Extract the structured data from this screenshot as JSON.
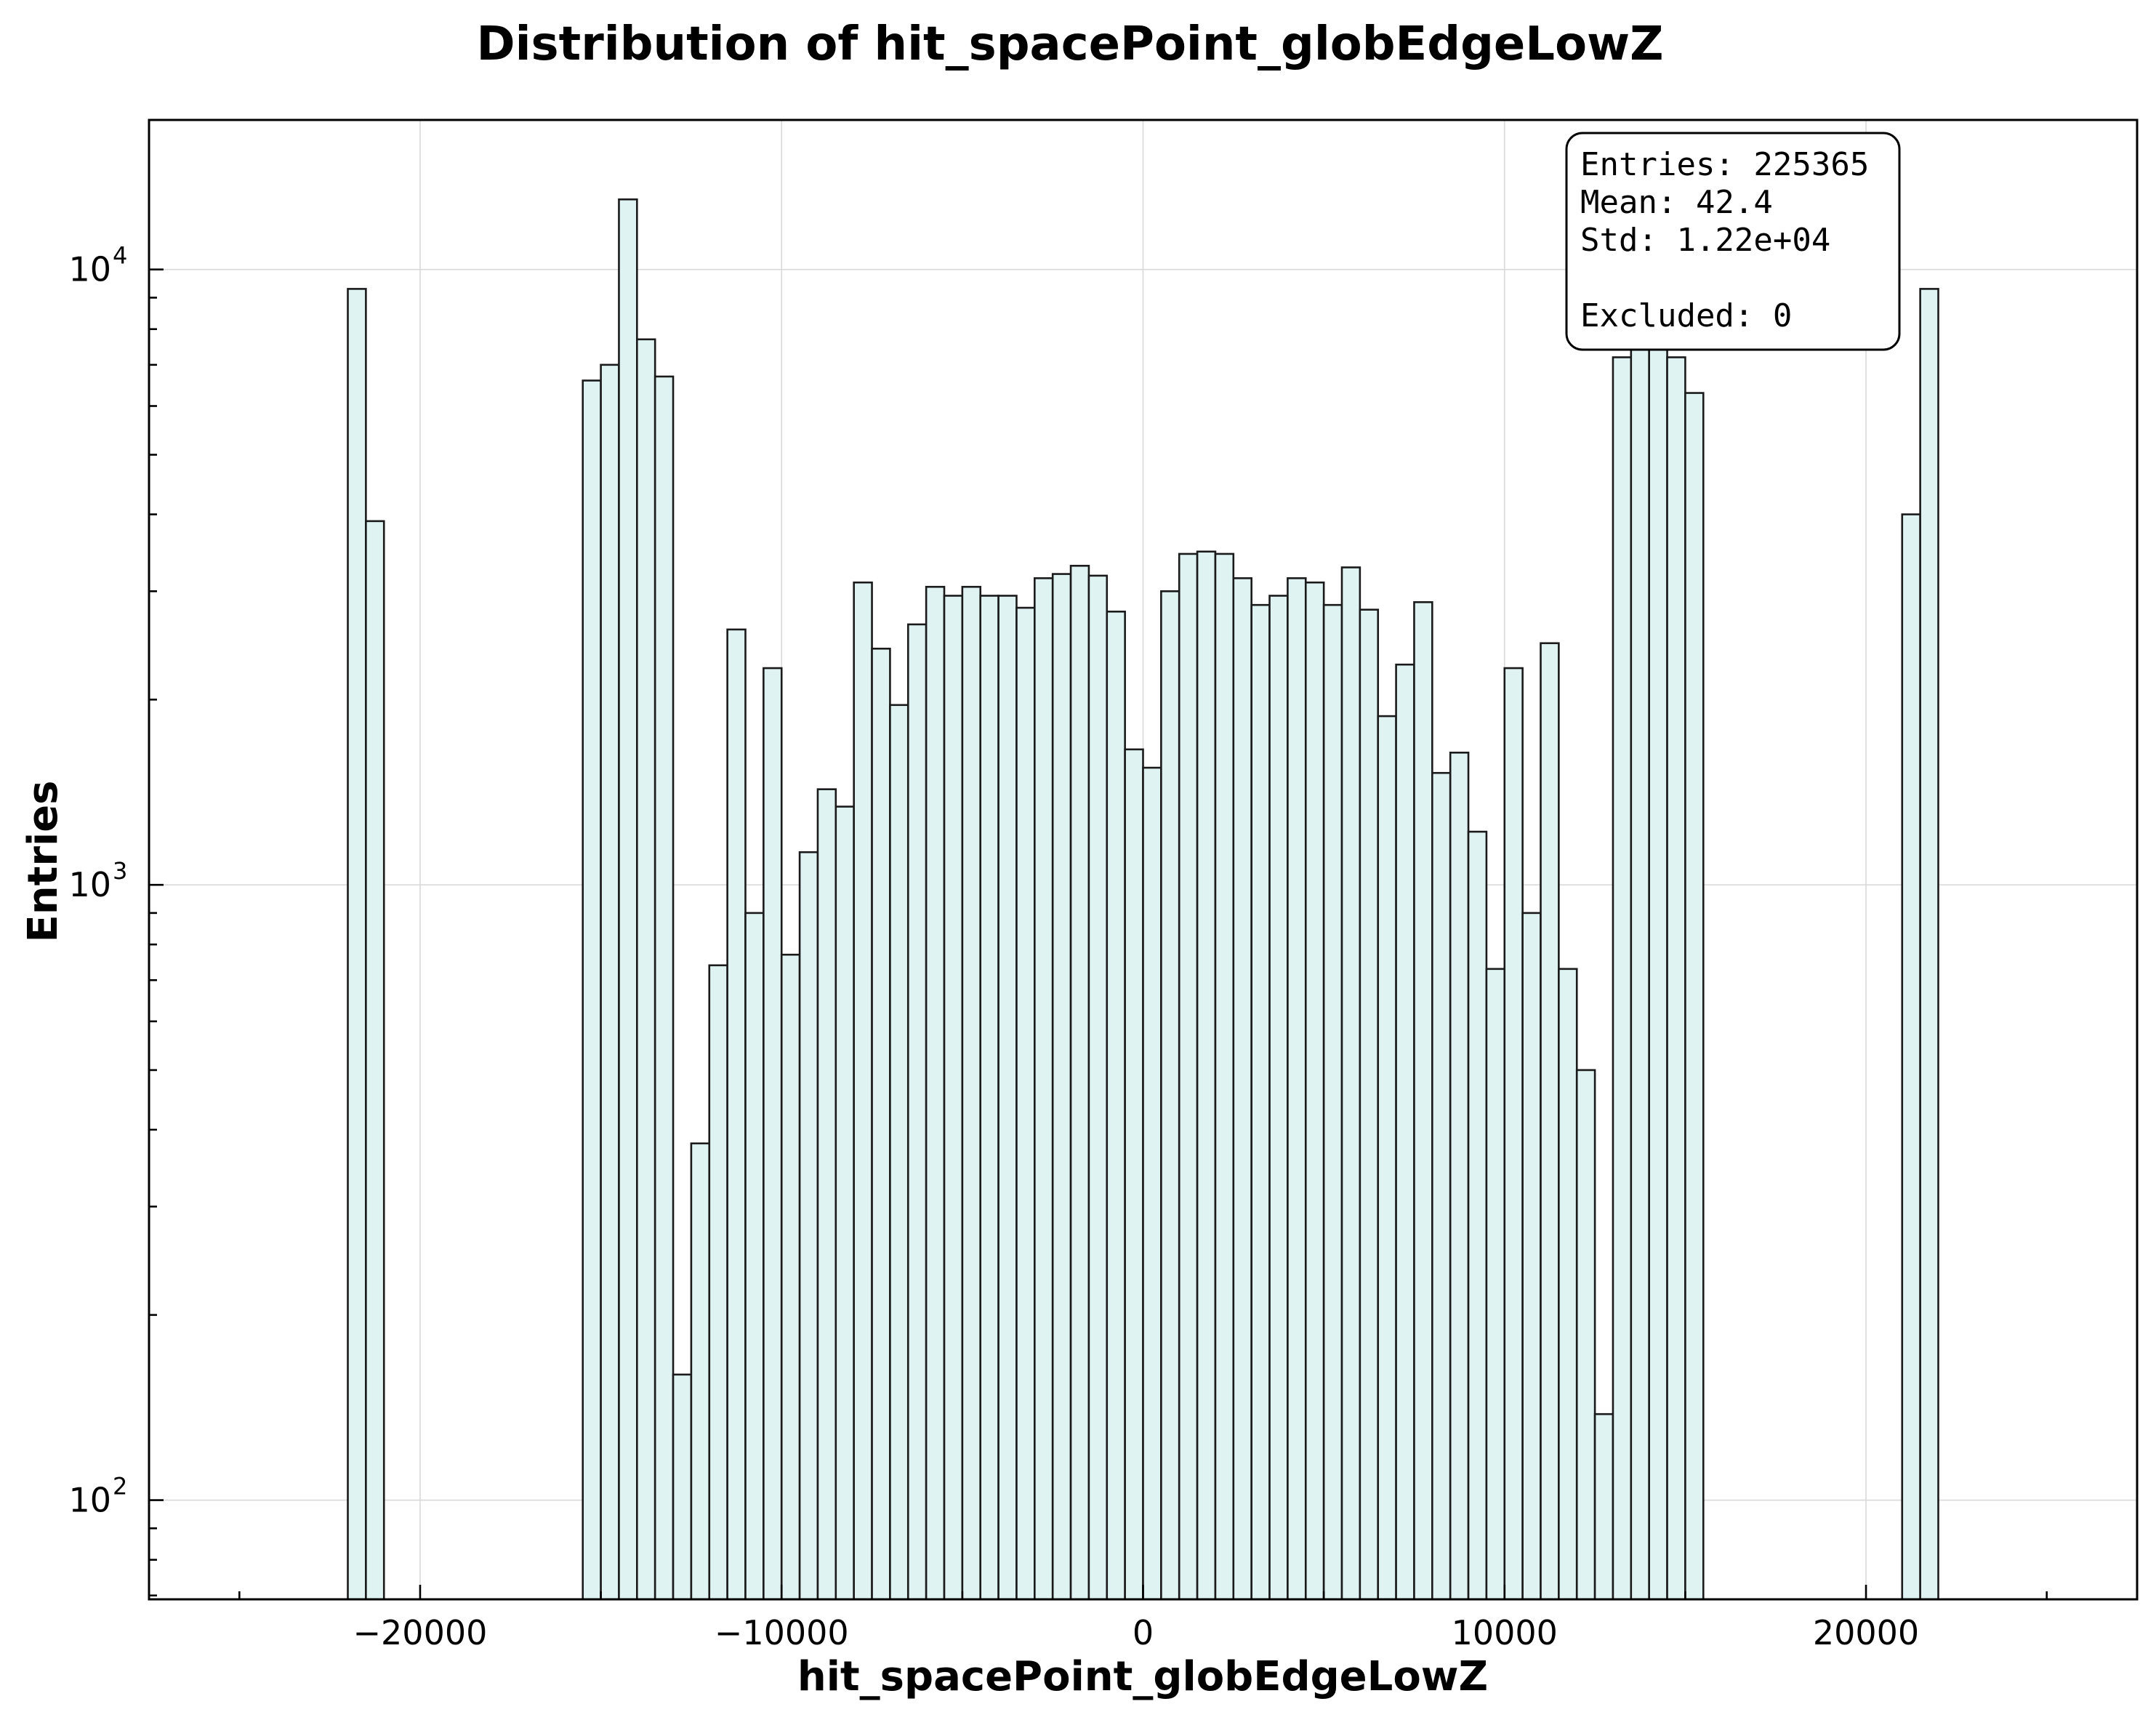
{
  "chart_data": {
    "type": "bar",
    "title": "Distribution of hit_spacePoint_globEdgeLowZ",
    "xlabel": "hit_spacePoint_globEdgeLowZ",
    "ylabel": "Entries",
    "y_scale": "log",
    "xlim": [
      -27500,
      27500
    ],
    "ylim": [
      69,
      17500
    ],
    "x_ticks": [
      -20000,
      -10000,
      0,
      10000,
      20000
    ],
    "x_tick_labels": [
      "−20000",
      "−10000",
      "0",
      "10000",
      "20000"
    ],
    "y_ticks": [
      100,
      1000,
      10000
    ],
    "y_tick_labels": [
      "10",
      "10",
      "10"
    ],
    "y_tick_exponents": [
      "2",
      "3",
      "4"
    ],
    "grid": true,
    "legend": "none",
    "bin_width": 500,
    "bins": [
      {
        "x0": -22000,
        "count": 9300
      },
      {
        "x0": -21500,
        "count": 3900
      },
      {
        "x0": -15500,
        "count": 6600
      },
      {
        "x0": -15000,
        "count": 7000
      },
      {
        "x0": -14500,
        "count": 13000
      },
      {
        "x0": -14000,
        "count": 7700
      },
      {
        "x0": -13500,
        "count": 6700
      },
      {
        "x0": -13000,
        "count": 160
      },
      {
        "x0": -12500,
        "count": 380
      },
      {
        "x0": -12000,
        "count": 740
      },
      {
        "x0": -11500,
        "count": 2600
      },
      {
        "x0": -11000,
        "count": 900
      },
      {
        "x0": -10500,
        "count": 2250
      },
      {
        "x0": -10000,
        "count": 770
      },
      {
        "x0": -9500,
        "count": 1130
      },
      {
        "x0": -9000,
        "count": 1430
      },
      {
        "x0": -8500,
        "count": 1340
      },
      {
        "x0": -8000,
        "count": 3100
      },
      {
        "x0": -7500,
        "count": 2420
      },
      {
        "x0": -7000,
        "count": 1960
      },
      {
        "x0": -6500,
        "count": 2650
      },
      {
        "x0": -6000,
        "count": 3050
      },
      {
        "x0": -5500,
        "count": 2950
      },
      {
        "x0": -5000,
        "count": 3050
      },
      {
        "x0": -4500,
        "count": 2950
      },
      {
        "x0": -4000,
        "count": 2950
      },
      {
        "x0": -3500,
        "count": 2820
      },
      {
        "x0": -3000,
        "count": 3150
      },
      {
        "x0": -2500,
        "count": 3200
      },
      {
        "x0": -2000,
        "count": 3300
      },
      {
        "x0": -1500,
        "count": 3180
      },
      {
        "x0": -1000,
        "count": 2780
      },
      {
        "x0": -500,
        "count": 1660
      },
      {
        "x0": 0,
        "count": 1550
      },
      {
        "x0": 500,
        "count": 3000
      },
      {
        "x0": 1000,
        "count": 3450
      },
      {
        "x0": 1500,
        "count": 3480
      },
      {
        "x0": 2000,
        "count": 3450
      },
      {
        "x0": 2500,
        "count": 3150
      },
      {
        "x0": 3000,
        "count": 2850
      },
      {
        "x0": 3500,
        "count": 2950
      },
      {
        "x0": 4000,
        "count": 3150
      },
      {
        "x0": 4500,
        "count": 3100
      },
      {
        "x0": 5000,
        "count": 2850
      },
      {
        "x0": 5500,
        "count": 3280
      },
      {
        "x0": 6000,
        "count": 2800
      },
      {
        "x0": 6500,
        "count": 1880
      },
      {
        "x0": 7000,
        "count": 2280
      },
      {
        "x0": 7500,
        "count": 2880
      },
      {
        "x0": 8000,
        "count": 1520
      },
      {
        "x0": 8500,
        "count": 1640
      },
      {
        "x0": 9000,
        "count": 1220
      },
      {
        "x0": 9500,
        "count": 730
      },
      {
        "x0": 10000,
        "count": 2250
      },
      {
        "x0": 10500,
        "count": 900
      },
      {
        "x0": 11000,
        "count": 2470
      },
      {
        "x0": 11500,
        "count": 730
      },
      {
        "x0": 12000,
        "count": 500
      },
      {
        "x0": 12500,
        "count": 138
      },
      {
        "x0": 13000,
        "count": 7200
      },
      {
        "x0": 13500,
        "count": 7500
      },
      {
        "x0": 14000,
        "count": 13500
      },
      {
        "x0": 14500,
        "count": 7200
      },
      {
        "x0": 15000,
        "count": 6300
      },
      {
        "x0": 21000,
        "count": 4000
      },
      {
        "x0": 21500,
        "count": 9300
      }
    ]
  },
  "stats_box": {
    "entries": "Entries: 225365",
    "mean": "Mean: 42.4",
    "std": "Std: 1.22e+04",
    "excluded": "Excluded: 0"
  }
}
